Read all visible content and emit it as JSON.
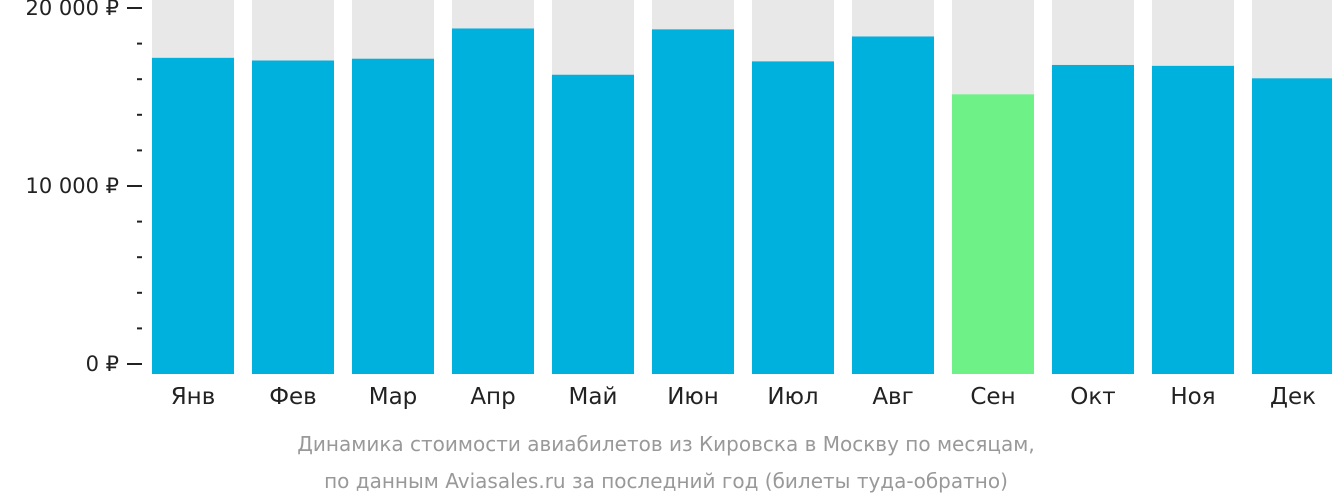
{
  "chart_data": {
    "type": "bar",
    "categories": [
      "Янв",
      "Фев",
      "Мар",
      "Апр",
      "Май",
      "Июн",
      "Июл",
      "Авг",
      "Сен",
      "Окт",
      "Ноя",
      "Дек"
    ],
    "values": [
      17200,
      17050,
      17150,
      18850,
      16250,
      18800,
      17000,
      18400,
      15150,
      16800,
      16750,
      16050
    ],
    "ylim": [
      0,
      20000
    ],
    "y_ticks": [
      {
        "value": 0,
        "label": "0 ₽"
      },
      {
        "value": 10000,
        "label": "10 000 ₽"
      },
      {
        "value": 20000,
        "label": "20 000 ₽"
      }
    ],
    "y_minor_step": 2000,
    "highlight_category": "Сен",
    "colors": {
      "bar": "#00b0dd",
      "highlight": "#6ef287",
      "bar_background": "#e8e8e8",
      "axis": "#222222",
      "caption": "#999999"
    },
    "grid": false,
    "legend": "none"
  },
  "caption": {
    "line1": "Динамика стоимости авиабилетов из Кировска в Москву по месяцам,",
    "line2": "по данным Aviasales.ru за последний год (билеты туда-обратно)"
  }
}
